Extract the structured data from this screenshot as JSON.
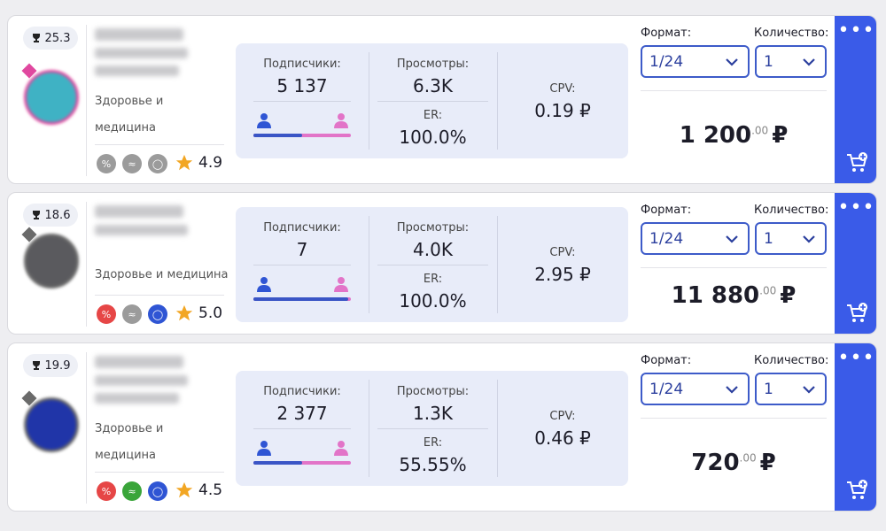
{
  "labels": {
    "subscribers": "Подписчики:",
    "views": "Просмотры:",
    "er": "ER:",
    "cpv": "CPV:",
    "format": "Формат:",
    "quantity": "Количество:"
  },
  "cards": [
    {
      "rank": "25.3",
      "category": "Здоровье и медицина",
      "rating": "4.9",
      "subscribers": "5 137",
      "views": "6.3K",
      "er": "100.0%",
      "cpv": "0.19 ₽",
      "format": "1/24",
      "quantity": "1",
      "price": "1 200",
      "price_cents": ".00",
      "currency": "₽",
      "male_percent": 50,
      "badge_colors": [
        "#9b9b9b",
        "#9b9b9b",
        "#9b9b9b"
      ],
      "avatar_color": "#3fb2c4",
      "avatar_ring": "#e0489f"
    },
    {
      "rank": "18.6",
      "category": "Здоровье и медицина",
      "rating": "5.0",
      "subscribers": "7",
      "views": "4.0K",
      "er": "100.0%",
      "cpv": "2.95 ₽",
      "format": "1/24",
      "quantity": "1",
      "price": "11 880",
      "price_cents": ".00",
      "currency": "₽",
      "male_percent": 97,
      "badge_colors": [
        "#e64646",
        "#9b9b9b",
        "#2f55d4"
      ],
      "avatar_color": "#5a5a5e",
      "avatar_ring": "#6a6a6a"
    },
    {
      "rank": "19.9",
      "category": "Здоровье и медицина",
      "rating": "4.5",
      "subscribers": "2 377",
      "views": "1.3K",
      "er": "55.55%",
      "cpv": "0.46 ₽",
      "format": "1/24",
      "quantity": "1",
      "price": "720",
      "price_cents": ".00",
      "currency": "₽",
      "male_percent": 50,
      "badge_colors": [
        "#e64646",
        "#3aa53a",
        "#2f55d4"
      ],
      "avatar_color": "#2035a8",
      "avatar_ring": "#6a6a6a"
    }
  ]
}
